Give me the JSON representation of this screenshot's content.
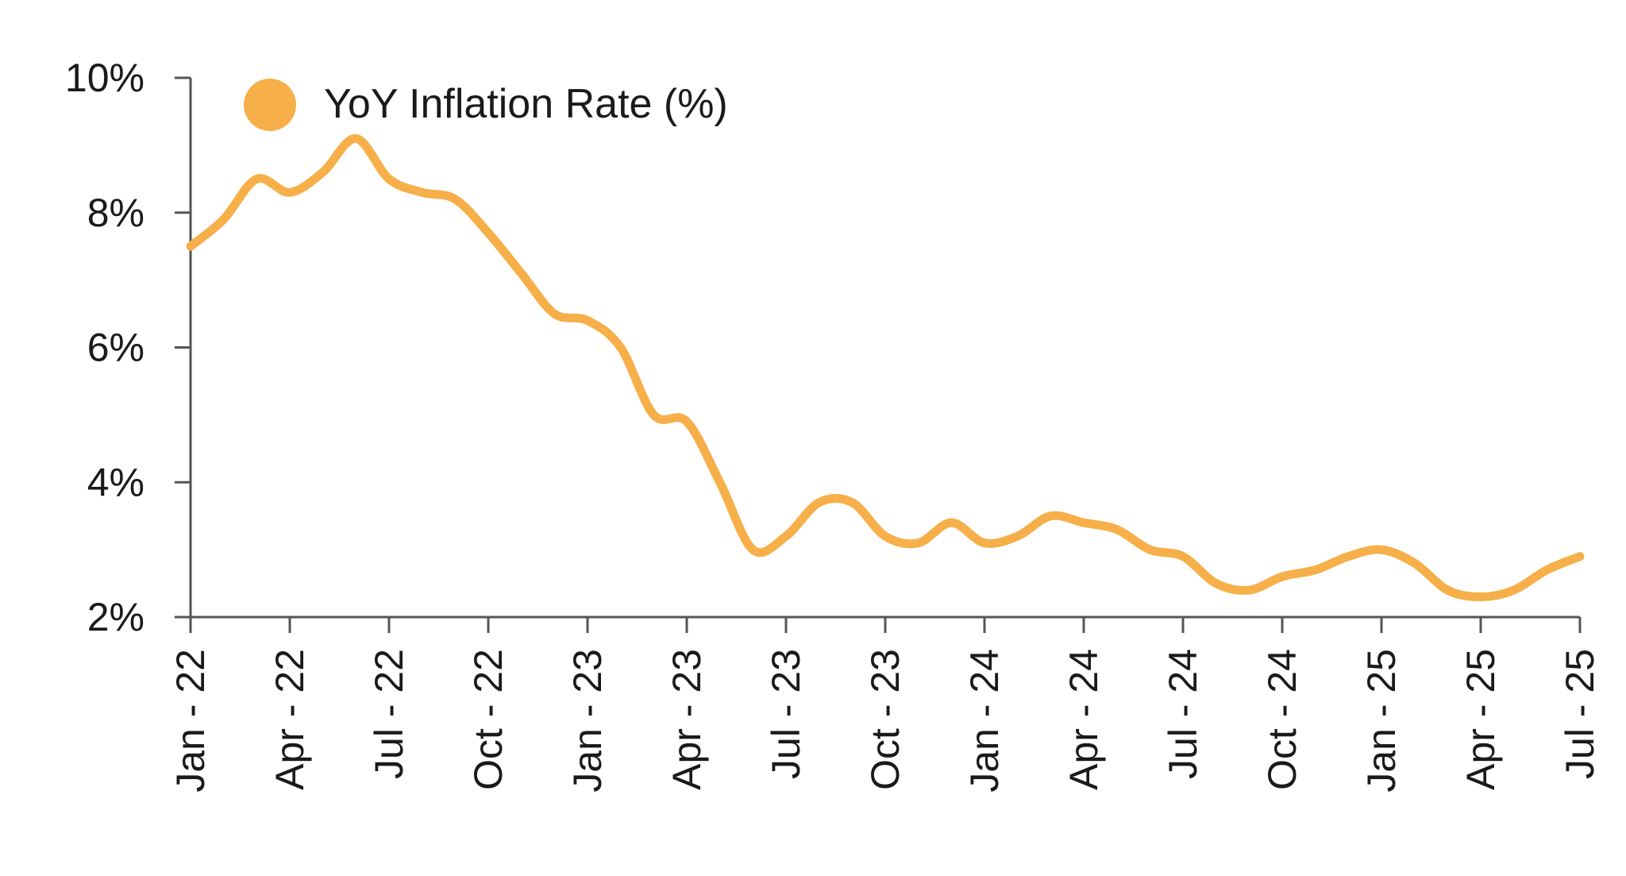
{
  "chart_data": {
    "type": "line",
    "title": "",
    "xlabel": "",
    "ylabel": "",
    "ylim": [
      2,
      10
    ],
    "yticks": [
      "2%",
      "4%",
      "6%",
      "8%",
      "10%"
    ],
    "ytick_values": [
      2,
      4,
      6,
      8,
      10
    ],
    "xtick_labels": [
      "Jan - 22",
      "Apr - 22",
      "Jul - 22",
      "Oct - 22",
      "Jan - 23",
      "Apr - 23",
      "Jul - 23",
      "Oct - 23",
      "Jan - 24",
      "Apr - 24",
      "Jul - 24",
      "Oct - 24",
      "Jan - 25",
      "Apr - 25",
      "Jul - 25"
    ],
    "legend_position": "top-left",
    "grid": false,
    "x": [
      "Jan 2022",
      "Feb 2022",
      "Mar 2022",
      "Apr 2022",
      "May 2022",
      "Jun 2022",
      "Jul 2022",
      "Aug 2022",
      "Sep 2022",
      "Oct 2022",
      "Nov 2022",
      "Dec 2022",
      "Jan 2023",
      "Feb 2023",
      "Mar 2023",
      "Apr 2023",
      "May 2023",
      "Jun 2023",
      "Jul 2023",
      "Aug 2023",
      "Sep 2023",
      "Oct 2023",
      "Nov 2023",
      "Dec 2023",
      "Jan 2024",
      "Feb 2024",
      "Mar 2024",
      "Apr 2024",
      "May 2024",
      "Jun 2024",
      "Jul 2024",
      "Aug 2024",
      "Sep 2024",
      "Oct 2024",
      "Nov 2024",
      "Dec 2024",
      "Jan 2025",
      "Feb 2025",
      "Mar 2025",
      "Apr 2025",
      "May 2025",
      "Jun 2025",
      "Jul 2025"
    ],
    "series": [
      {
        "name": "YoY Inflation Rate (%)",
        "color": "#F7AF4A",
        "values": [
          7.5,
          7.9,
          8.5,
          8.3,
          8.6,
          9.1,
          8.5,
          8.3,
          8.2,
          7.7,
          7.1,
          6.5,
          6.4,
          6.0,
          5.0,
          4.9,
          4.0,
          3.0,
          3.2,
          3.7,
          3.7,
          3.2,
          3.1,
          3.4,
          3.1,
          3.2,
          3.5,
          3.4,
          3.3,
          3.0,
          2.9,
          2.5,
          2.4,
          2.6,
          2.7,
          2.9,
          3.0,
          2.8,
          2.4,
          2.3,
          2.4,
          2.7,
          2.9
        ]
      }
    ]
  }
}
